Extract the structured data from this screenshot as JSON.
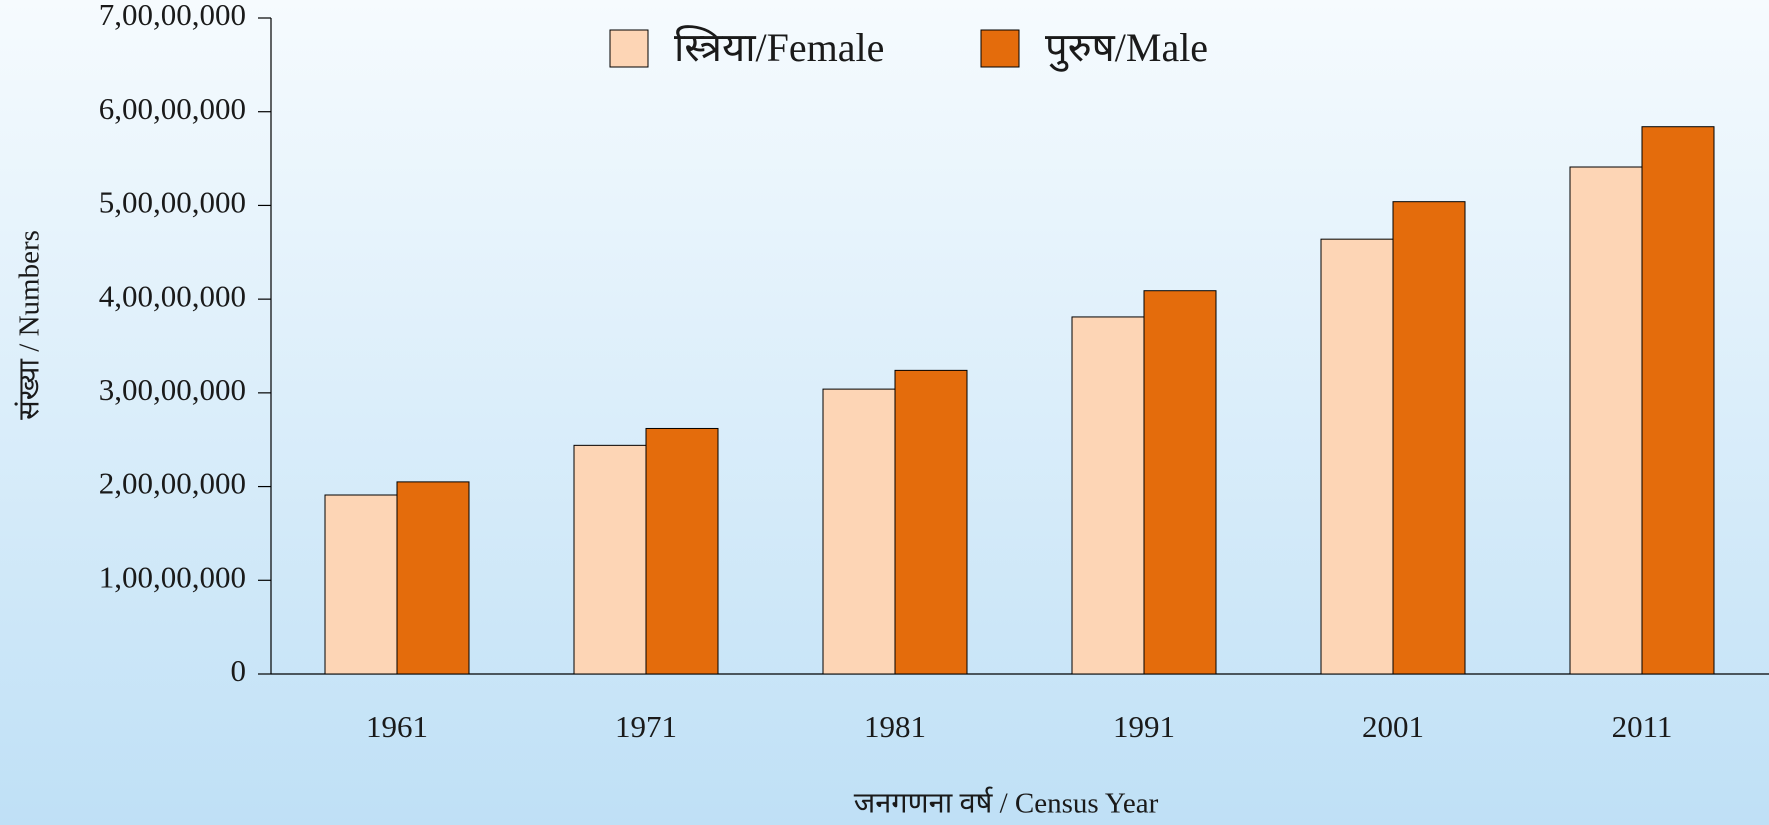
{
  "chart_data": {
    "type": "bar",
    "x_label": "जनगणना वर्ष / Census Year",
    "y_label": "संख्या / Numbers",
    "categories": [
      "1961",
      "1971",
      "1981",
      "1991",
      "2001",
      "2011"
    ],
    "series": [
      {
        "name": "स्त्रिया/Female",
        "color": "#fdd5b5",
        "values": [
          19100000,
          24400000,
          30400000,
          38100000,
          46400000,
          54100000
        ]
      },
      {
        "name": "पुरुष/Male",
        "color": "#e46c0c",
        "values": [
          20500000,
          26200000,
          32400000,
          40900000,
          50400000,
          58400000
        ]
      }
    ],
    "ylim": [
      0,
      70000000
    ],
    "yticks": [
      0,
      {
        "value": 10000000,
        "label": "1,00,00,000"
      },
      {
        "value": 20000000,
        "label": "2,00,00,000"
      },
      {
        "value": 30000000,
        "label": "3,00,00,000"
      },
      {
        "value": 40000000,
        "label": "4,00,00,000"
      },
      {
        "value": 50000000,
        "label": "5,00,00,000"
      },
      {
        "value": 60000000,
        "label": "6,00,00,000"
      },
      {
        "value": 70000000,
        "label": "7,00,00,000"
      }
    ],
    "legend": "top"
  }
}
